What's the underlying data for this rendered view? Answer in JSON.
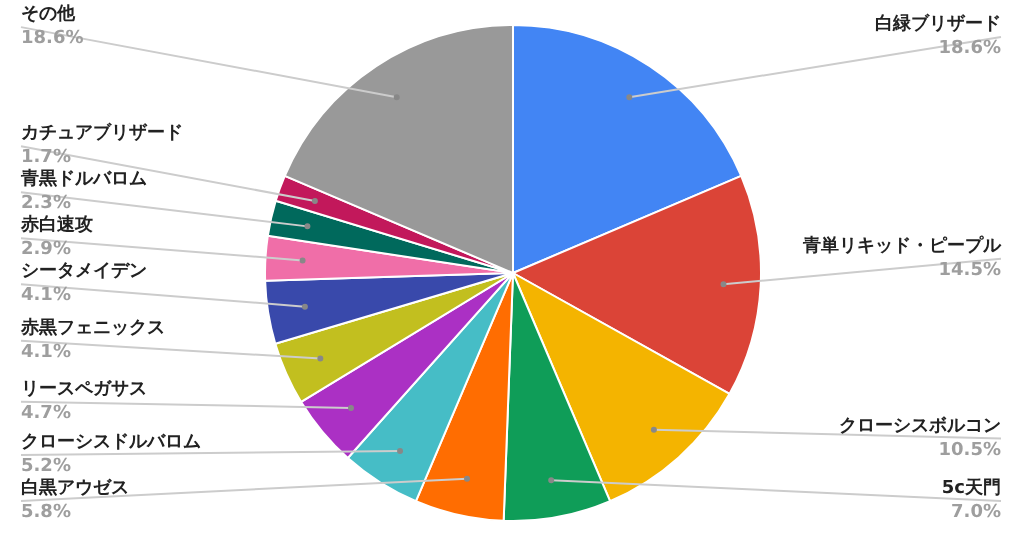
{
  "chart_data": {
    "type": "pie",
    "categories": [
      "白緑ブリザード",
      "青単リキッド・ピープル",
      "クローシスボルコン",
      "5c天門",
      "白黒アウゼス",
      "クローシスドルバロム",
      "リースペガサス",
      "赤黒フェニックス",
      "シータメイデン",
      "赤白速攻",
      "青黒ドルバロム",
      "カチュアブリザード",
      "その他"
    ],
    "values": [
      18.6,
      14.5,
      10.5,
      7.0,
      5.8,
      5.2,
      4.7,
      4.1,
      4.1,
      2.9,
      2.3,
      1.7,
      18.6
    ],
    "value_labels": [
      "18.6%",
      "14.5%",
      "10.5%",
      "7.0%",
      "5.8%",
      "5.2%",
      "4.7%",
      "4.1%",
      "4.1%",
      "2.9%",
      "2.3%",
      "1.7%",
      "18.6%"
    ],
    "colors": [
      "#4285f4",
      "#db4437",
      "#f4b400",
      "#0f9d58",
      "#ff6d01",
      "#46bdc6",
      "#ab30c4",
      "#c2bf1f",
      "#3949ab",
      "#f06ea8",
      "#00695c",
      "#c2185b",
      "#999999"
    ]
  }
}
